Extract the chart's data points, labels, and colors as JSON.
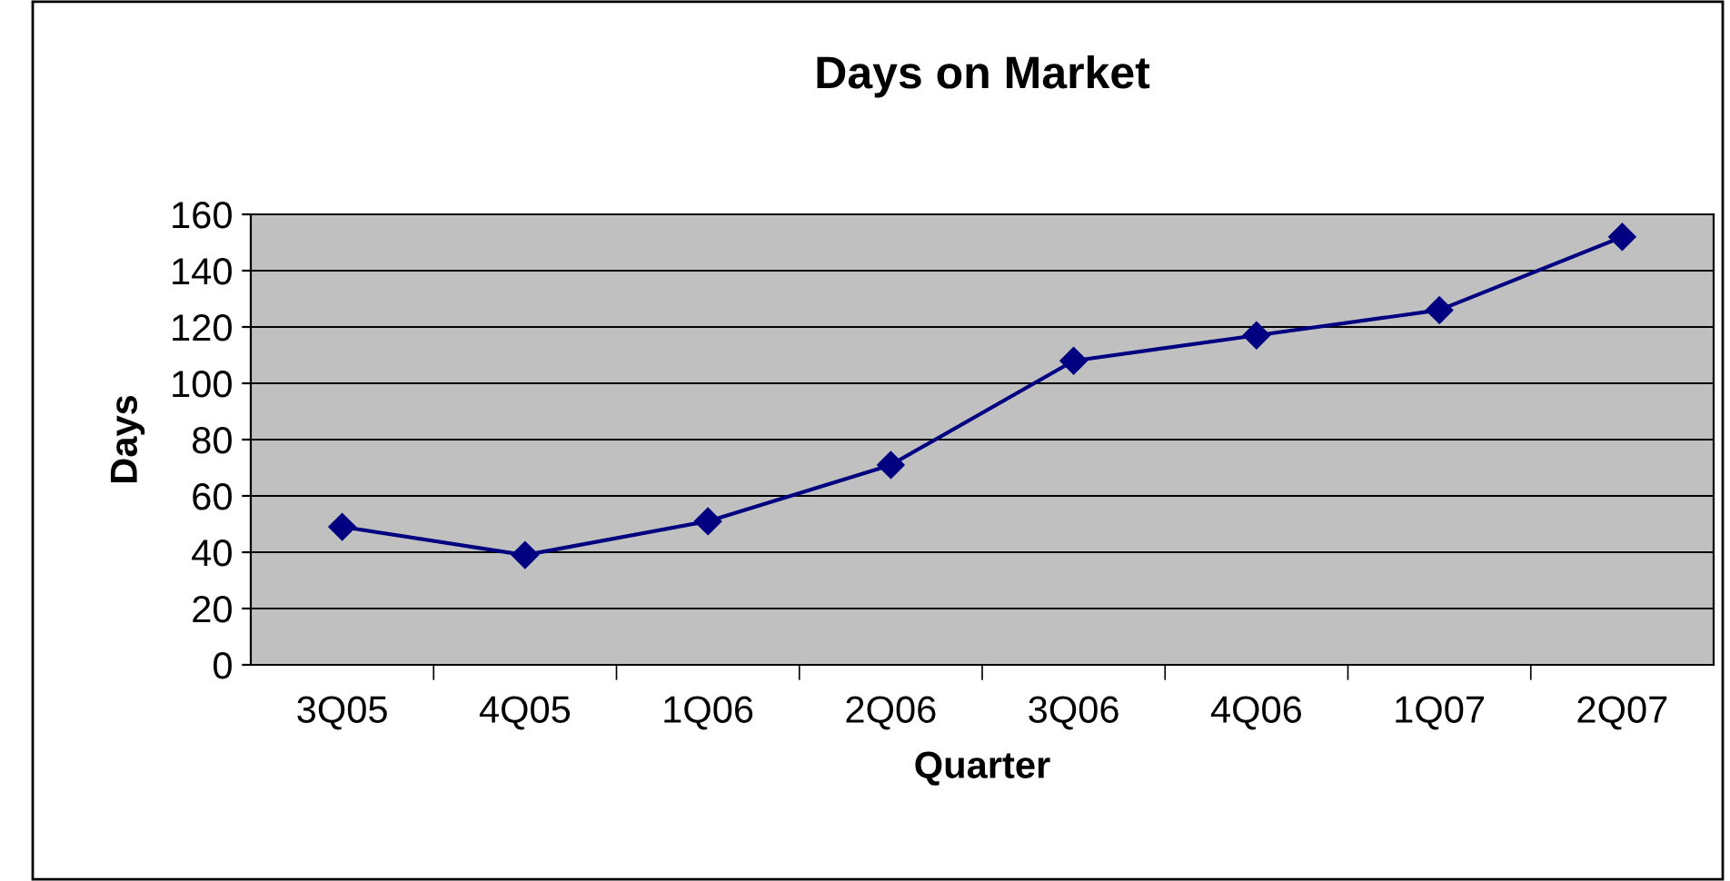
{
  "chart_data": {
    "type": "line",
    "title": "Days on Market",
    "xlabel": "Quarter",
    "ylabel": "Days",
    "categories": [
      "3Q05",
      "4Q05",
      "1Q06",
      "2Q06",
      "3Q06",
      "4Q06",
      "1Q07",
      "2Q07"
    ],
    "series": [
      {
        "color": "#000080",
        "values": [
          49,
          39,
          51,
          71,
          108,
          117,
          126,
          152
        ]
      }
    ],
    "ylim": [
      0,
      160
    ],
    "yticks": [
      0,
      20,
      40,
      60,
      80,
      100,
      120,
      140,
      160
    ],
    "grid": "y",
    "marker": "diamond",
    "line_style": "solid",
    "legend": false
  }
}
